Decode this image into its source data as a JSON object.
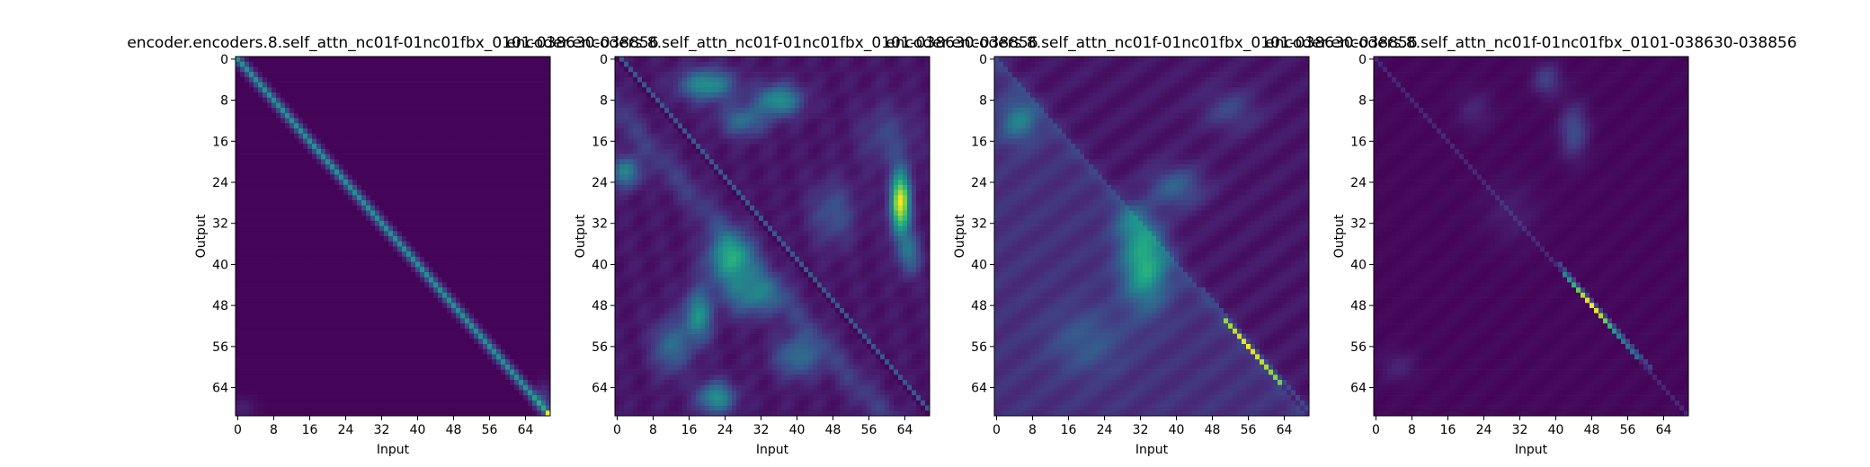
{
  "chart_data": [
    {
      "type": "heatmap",
      "title": "encoder.encoders.8.self_attn_nc01f-01nc01fbx_0101-038630-038856",
      "xlabel": "Input",
      "ylabel": "Output",
      "xlim": [
        0,
        70
      ],
      "ylim": [
        70,
        0
      ],
      "xticks": [
        "0",
        "8",
        "16",
        "24",
        "32",
        "40",
        "48",
        "56",
        "64"
      ],
      "yticks": [
        "0",
        "8",
        "16",
        "24",
        "32",
        "40",
        "48",
        "56",
        "64"
      ],
      "grid": false,
      "colormap": "viridis",
      "pattern": "sharp diagonal attention; bright peak at the last position",
      "diagonal_intensity": 0.55,
      "peak": {
        "x": 69,
        "y": 69,
        "value": 1.0
      }
    },
    {
      "type": "heatmap",
      "title": "encoder.encoders.8.self_attn_nc01f-01nc01fbx_0101-038630-038856",
      "xlabel": "Input",
      "ylabel": "Output",
      "xlim": [
        0,
        70
      ],
      "ylim": [
        70,
        0
      ],
      "xticks": [
        "0",
        "8",
        "16",
        "24",
        "32",
        "40",
        "48",
        "56",
        "64"
      ],
      "yticks": [
        "0",
        "8",
        "16",
        "24",
        "32",
        "40",
        "48",
        "56",
        "64"
      ],
      "grid": false,
      "colormap": "viridis",
      "pattern": "diffuse blobs; dark diagonal; bright blob near input 63, output 24-34",
      "hotspots": [
        {
          "x": 63,
          "y": 28,
          "value": 0.95
        },
        {
          "x": 20,
          "y": 5,
          "value": 0.55
        },
        {
          "x": 36,
          "y": 8,
          "value": 0.55
        },
        {
          "x": 25,
          "y": 39,
          "value": 0.55
        },
        {
          "x": 18,
          "y": 50,
          "value": 0.5
        },
        {
          "x": 30,
          "y": 46,
          "value": 0.45
        },
        {
          "x": 22,
          "y": 66,
          "value": 0.5
        },
        {
          "x": 2,
          "y": 22,
          "value": 0.45
        }
      ]
    },
    {
      "type": "heatmap",
      "title": "encoder.encoders.8.self_attn_nc01f-01nc01fbx_0101-038630-038856",
      "xlabel": "Input",
      "ylabel": "Output",
      "xlim": [
        0,
        70
      ],
      "ylim": [
        70,
        0
      ],
      "xticks": [
        "0",
        "8",
        "16",
        "24",
        "32",
        "40",
        "48",
        "56",
        "64"
      ],
      "yticks": [
        "0",
        "8",
        "16",
        "24",
        "32",
        "40",
        "48",
        "56",
        "64"
      ],
      "grid": false,
      "colormap": "viridis",
      "pattern": "bright diagonal for outputs 51-63; diffuse blobs below diagonal",
      "diagonal_range": [
        51,
        63
      ],
      "diagonal_peak": 1.0,
      "hotspots": [
        {
          "x": 33,
          "y": 40,
          "value": 0.55
        },
        {
          "x": 5,
          "y": 12,
          "value": 0.35
        },
        {
          "x": 40,
          "y": 25,
          "value": 0.3
        }
      ]
    },
    {
      "type": "heatmap",
      "title": "encoder.encoders.8.self_attn_nc01f-01nc01fbx_0101-038630-038856",
      "xlabel": "Input",
      "ylabel": "Output",
      "xlim": [
        0,
        70
      ],
      "ylim": [
        70,
        0
      ],
      "xticks": [
        "0",
        "8",
        "16",
        "24",
        "32",
        "40",
        "48",
        "56",
        "64"
      ],
      "yticks": [
        "0",
        "8",
        "16",
        "24",
        "32",
        "40",
        "48",
        "56",
        "64"
      ],
      "grid": false,
      "colormap": "viridis",
      "pattern": "mostly dark; bright diagonal for outputs 42-58 peaking near 48",
      "diagonal_range": [
        42,
        58
      ],
      "diagonal_peak": {
        "position": 48,
        "value": 1.0
      },
      "hotspots": [
        {
          "x": 44,
          "y": 14,
          "value": 0.25
        },
        {
          "x": 38,
          "y": 4,
          "value": 0.2
        }
      ]
    }
  ]
}
